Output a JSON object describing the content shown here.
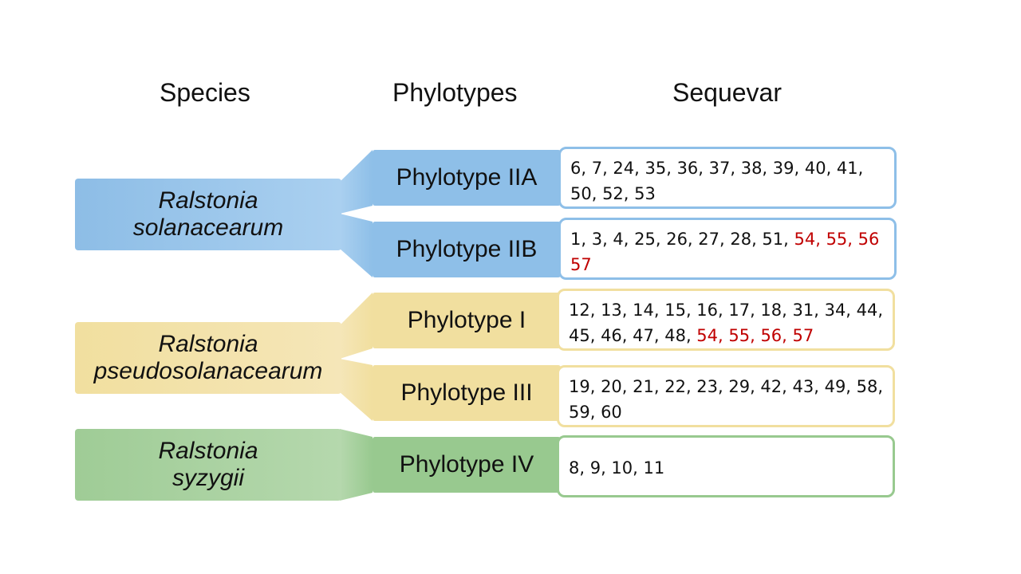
{
  "headers": {
    "species": "Species",
    "phylotypes": "Phylotypes",
    "sequevar": "Sequevar"
  },
  "species": [
    {
      "line1": "Ralstonia",
      "line2": "solanacearum",
      "color": "#a8cdee"
    },
    {
      "line1": "Ralstonia",
      "line2": "pseudosolanacearum",
      "color": "#f3e3ae"
    },
    {
      "line1": "Ralstonia",
      "line2": "syzygii",
      "color": "#b1d5a9"
    }
  ],
  "phylotypes": [
    {
      "label": "Phylotype IIA",
      "color": "#8ebfe8"
    },
    {
      "label": "Phylotype IIB",
      "color": "#8ebfe8"
    },
    {
      "label": "Phylotype I",
      "color": "#f1df9f"
    },
    {
      "label": "Phylotype III",
      "color": "#f1df9f"
    },
    {
      "label": "Phylotype IV",
      "color": "#98c98f"
    }
  ],
  "sequevars": [
    {
      "line1": "6, 7, 24, 35, 36, 37, 38, 39, 40, 41,",
      "line1_red": "",
      "line2": "50, 52, 53",
      "line2_red": "",
      "border": "#8ebfe8"
    },
    {
      "line1": "1, 3, 4, 25, 26, 27, 28, 51, ",
      "line1_red": "54, 55, 56",
      "line2": "",
      "line2_red": "57",
      "border": "#8ebfe8"
    },
    {
      "line1": "12, 13, 14, 15, 16, 17, 18, 31, 34, 44,",
      "line1_red": "",
      "line2": "45, 46, 47, 48, ",
      "line2_red": "54, 55, 56, 57",
      "border": "#f1df9f"
    },
    {
      "line1": "19, 20, 21, 22, 23, 29, 42, 43, 49, 58,",
      "line1_red": "",
      "line2": "59, 60",
      "line2_red": "",
      "border": "#f1df9f"
    },
    {
      "line1": "8, 9, 10, 11",
      "line1_red": "",
      "line2": "",
      "line2_red": "",
      "border": "#98c98f"
    }
  ],
  "highlight_color": "#c00000"
}
